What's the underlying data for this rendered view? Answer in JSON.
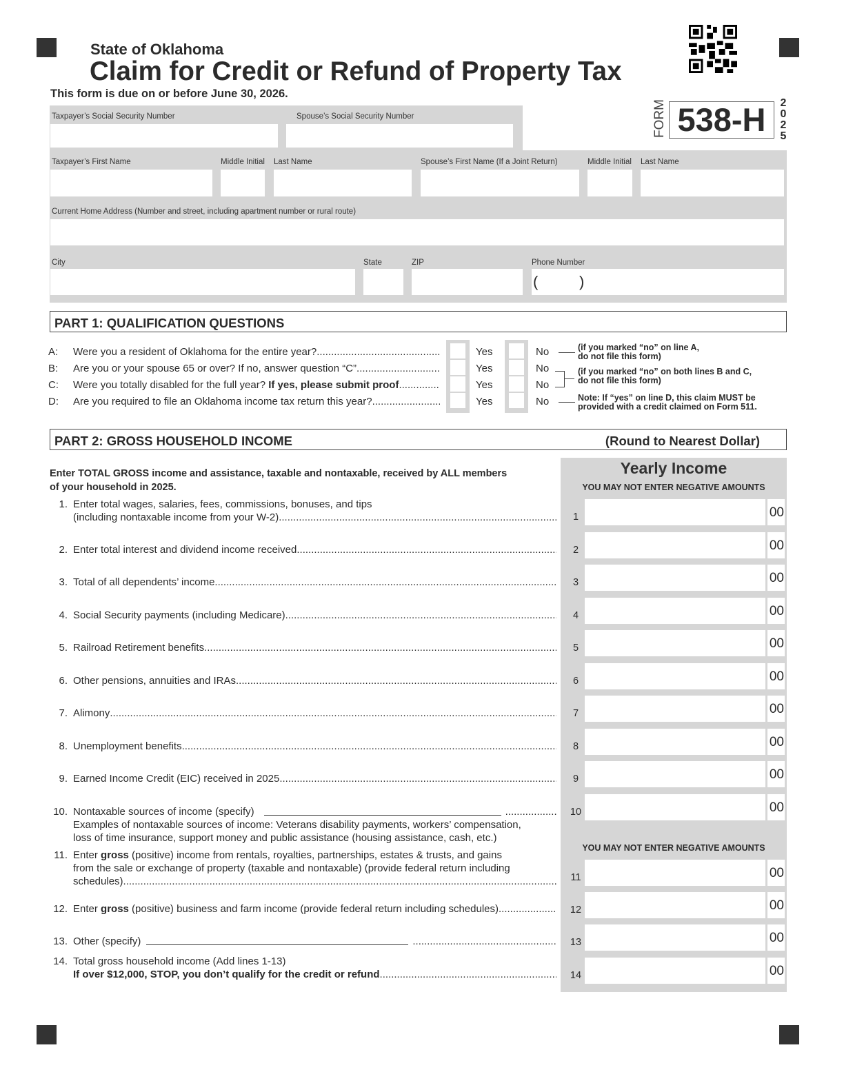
{
  "header": {
    "state": "State of Oklahoma",
    "title": "Claim for Credit or Refund of Property Tax",
    "due": "This form is due on or before June 30, 2026.",
    "form_word": "FORM",
    "form_number": "538-H",
    "year_digits": [
      "2",
      "0",
      "2",
      "5"
    ]
  },
  "fields": {
    "taxpayer_ssn": "Taxpayer’s Social Security Number",
    "spouse_ssn": "Spouse’s Social Security Number",
    "first_name": "Taxpayer’s First Name",
    "middle_initial": "Middle Initial",
    "last_name": "Last Name",
    "spouse_first": "Spouse’s First Name (If a Joint Return)",
    "spouse_middle": "Middle Initial",
    "spouse_last": "Last Name",
    "address": "Current Home Address (Number and street, including apartment number or rural route)",
    "city": "City",
    "state": "State",
    "zip": "ZIP",
    "phone": "Phone Number",
    "phone_open": "(",
    "phone_close": ")"
  },
  "part1": {
    "title": "PART 1: QUALIFICATION QUESTIONS",
    "yes": "Yes",
    "no": "No",
    "questions": [
      {
        "letter": "A:",
        "segments": [
          {
            "t": "Were you a resident of Oklahoma for the entire year?"
          }
        ]
      },
      {
        "letter": "B:",
        "segments": [
          {
            "t": "Are you or your spouse 65 or over? If no, answer question “C”"
          }
        ]
      },
      {
        "letter": "C:",
        "segments": [
          {
            "t": "Were you totally disabled for the full year? "
          },
          {
            "t": "If yes, please submit proof",
            "b": true
          },
          {
            "t": ".."
          }
        ]
      },
      {
        "letter": "D:",
        "segments": [
          {
            "t": "Are you required to file an Oklahoma income tax return this year?"
          }
        ]
      }
    ],
    "notes": {
      "a": [
        "(if you marked “no” on line A,",
        "do not file this form)"
      ],
      "bc": [
        "(if you marked “no” on both lines B and C,",
        "do not file this form)"
      ],
      "d": [
        "Note: If “yes” on line D, this claim MUST be",
        "provided with a credit claimed on Form 511."
      ]
    }
  },
  "part2": {
    "title": "PART 2: GROSS HOUSEHOLD INCOME",
    "round": "(Round to Nearest Dollar)",
    "column_title": "Yearly Income",
    "no_negative": "YOU MAY NOT ENTER NEGATIVE AMOUNTS",
    "intro": [
      "Enter TOTAL GROSS income and assistance, taxable and nontaxable, received by ALL members",
      "of your household in 2025."
    ],
    "cents": "00",
    "lines": [
      {
        "num": "1.",
        "line": "1",
        "text": [
          [
            {
              "t": "Enter total wages, salaries, fees, commissions, bonuses, and tips"
            }
          ],
          [
            {
              "t": "(including nontaxable income from your W-2)"
            }
          ]
        ]
      },
      {
        "num": "2.",
        "line": "2",
        "text": [
          [
            {
              "t": "Enter total interest and dividend income received"
            }
          ]
        ]
      },
      {
        "num": "3.",
        "line": "3",
        "text": [
          [
            {
              "t": "Total of all dependents’ income "
            }
          ]
        ]
      },
      {
        "num": "4.",
        "line": "4",
        "text": [
          [
            {
              "t": "Social Security payments (including Medicare)"
            }
          ]
        ]
      },
      {
        "num": "5.",
        "line": "5",
        "text": [
          [
            {
              "t": "Railroad Retirement benefits"
            }
          ]
        ]
      },
      {
        "num": "6.",
        "line": "6",
        "text": [
          [
            {
              "t": "Other pensions, annuities and IRAs"
            }
          ]
        ]
      },
      {
        "num": "7.",
        "line": "7",
        "text": [
          [
            {
              "t": "Alimony"
            }
          ]
        ]
      },
      {
        "num": "8.",
        "line": "8",
        "text": [
          [
            {
              "t": "Unemployment benefits"
            }
          ]
        ]
      },
      {
        "num": "9.",
        "line": "9",
        "text": [
          [
            {
              "t": "Earned Income Credit (EIC) received in 2025"
            }
          ]
        ]
      },
      {
        "num": "10.",
        "line": "10",
        "blank": true,
        "text": [
          [
            {
              "t": "Nontaxable sources of income (specify)"
            }
          ],
          [
            {
              "t": "Examples of nontaxable sources of income: Veterans disability payments, workers’ compensation,"
            }
          ],
          [
            {
              "t": "loss of time insurance, support money and public assistance (housing assistance, cash, etc.)"
            }
          ]
        ]
      },
      {
        "num": "11.",
        "line": "11",
        "text": [
          [
            {
              "t": "Enter "
            },
            {
              "t": "gross",
              "b": true
            },
            {
              "t": " (positive) income from rentals, royalties, partnerships, estates & trusts, and gains"
            }
          ],
          [
            {
              "t": "from the sale or exchange of property (taxable and nontaxable) (provide federal return including"
            }
          ],
          [
            {
              "t": "schedules)"
            }
          ]
        ]
      },
      {
        "num": "12.",
        "line": "12",
        "text": [
          [
            {
              "t": "Enter "
            },
            {
              "t": "gross",
              "b": true
            },
            {
              "t": " (positive) business and farm income (provide federal return including schedules)"
            }
          ]
        ]
      },
      {
        "num": "13.",
        "line": "13",
        "blank": true,
        "text": [
          [
            {
              "t": "Other (specify)"
            }
          ]
        ]
      },
      {
        "num": "14.",
        "line": "14",
        "text": [
          [
            {
              "t": "Total gross household income (Add lines 1-13)"
            }
          ],
          [
            {
              "t": "If over $12,000, STOP, you don’t qualify for the credit or refund",
              "b": true
            }
          ]
        ]
      }
    ]
  }
}
